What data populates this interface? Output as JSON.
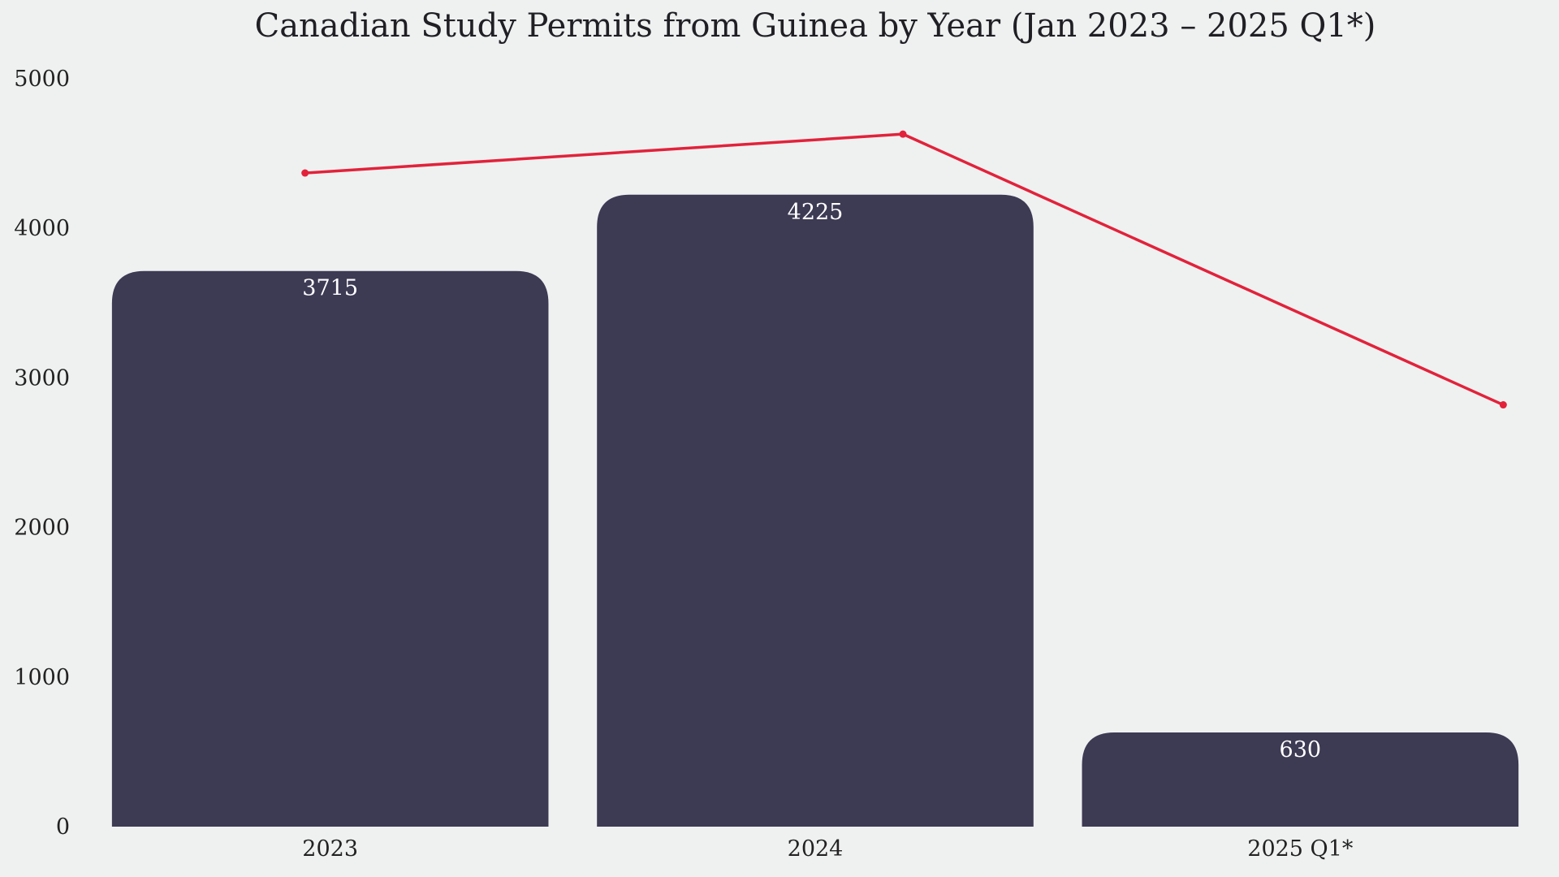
{
  "chart_data": {
    "type": "bar",
    "title": "Canadian Study Permits from Guinea by Year (Jan 2023 – 2025 Q1*)",
    "xlabel": "",
    "ylabel": "",
    "categories": [
      "2023",
      "2024",
      "2025 Q1*"
    ],
    "values": [
      3715,
      4225,
      630
    ],
    "data_labels": [
      "3715",
      "4225",
      "630"
    ],
    "ylim": [
      0,
      5000
    ],
    "yticks": [
      0,
      1000,
      2000,
      3000,
      4000,
      5000
    ],
    "grid": false,
    "legend": "none",
    "overlay_line": {
      "type": "line",
      "values": [
        4370,
        4630,
        2820
      ],
      "color": "#e2223a"
    },
    "colors": {
      "bar": "#3d3a54",
      "line": "#e2223a",
      "background": "#eff1f1"
    }
  }
}
